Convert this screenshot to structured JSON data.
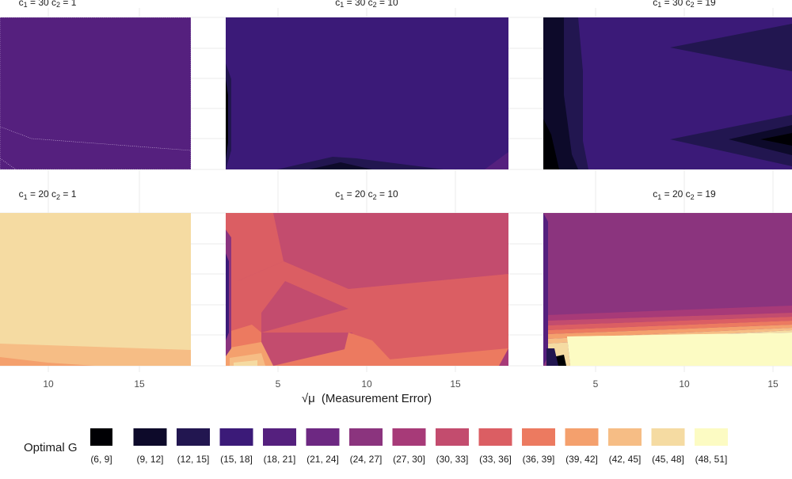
{
  "chart_data": {
    "type": "contour",
    "xlabel_symbol": "√μ",
    "xlabel_text": "(Measurement Error)",
    "legend": {
      "title": "Optimal G",
      "placement": "bottom",
      "bins": [
        {
          "label": "(6, 9]",
          "color": "#000004"
        },
        {
          "label": "(9, 12]",
          "color": "#0d0a2a"
        },
        {
          "label": "(12, 15]",
          "color": "#221650"
        },
        {
          "label": "(15, 18]",
          "color": "#3b1a78"
        },
        {
          "label": "(18, 21]",
          "color": "#55207e"
        },
        {
          "label": "(21, 24]",
          "color": "#6d2882"
        },
        {
          "label": "(24, 27]",
          "color": "#8b347e"
        },
        {
          "label": "(27, 30]",
          "color": "#a73a78"
        },
        {
          "label": "(30, 33]",
          "color": "#c34c6e"
        },
        {
          "label": "(33, 36]",
          "color": "#db5e63"
        },
        {
          "label": "(36, 39]",
          "color": "#ec7a60"
        },
        {
          "label": "(39, 42]",
          "color": "#f4a06d"
        },
        {
          "label": "(42, 45]",
          "color": "#f6bd85"
        },
        {
          "label": "(45, 48]",
          "color": "#f5dba2"
        },
        {
          "label": "(48, 51]",
          "color": "#fcfbc3"
        }
      ]
    },
    "panels": [
      {
        "strip_a": "c",
        "strip_a_sub": "1",
        "strip_a_val": " = 30 ",
        "strip_b": "c",
        "strip_b_sub": "2",
        "strip_b_val": " = 1",
        "xrange": [
          7,
          18
        ],
        "xticks": []
      },
      {
        "strip_a": "c",
        "strip_a_sub": "1",
        "strip_a_val": " = 30 ",
        "strip_b": "c",
        "strip_b_sub": "2",
        "strip_b_val": " = 10",
        "xrange": [
          1.5,
          19
        ],
        "xticks": []
      },
      {
        "strip_a": "c",
        "strip_a_sub": "1",
        "strip_a_val": " = 30 ",
        "strip_b": "c",
        "strip_b_sub": "2",
        "strip_b_val": " = 19",
        "xrange": [
          2,
          16
        ],
        "xticks": []
      },
      {
        "strip_a": "c",
        "strip_a_sub": "1",
        "strip_a_val": " = 20 ",
        "strip_b": "c",
        "strip_b_sub": "2",
        "strip_b_val": " = 1",
        "xrange": [
          7,
          18
        ],
        "xticks": [
          "10",
          "15"
        ]
      },
      {
        "strip_a": "c",
        "strip_a_sub": "1",
        "strip_a_val": " = 20 ",
        "strip_b": "c",
        "strip_b_sub": "2",
        "strip_b_val": " = 10",
        "xrange": [
          1.5,
          19
        ],
        "xticks": [
          "5",
          "10",
          "15"
        ]
      },
      {
        "strip_a": "c",
        "strip_a_sub": "1",
        "strip_a_val": " = 20 ",
        "strip_b": "c",
        "strip_b_sub": "2",
        "strip_b_val": " = 19",
        "xrange": [
          2,
          16
        ],
        "xticks": [
          "5",
          "10",
          "15"
        ]
      }
    ]
  }
}
